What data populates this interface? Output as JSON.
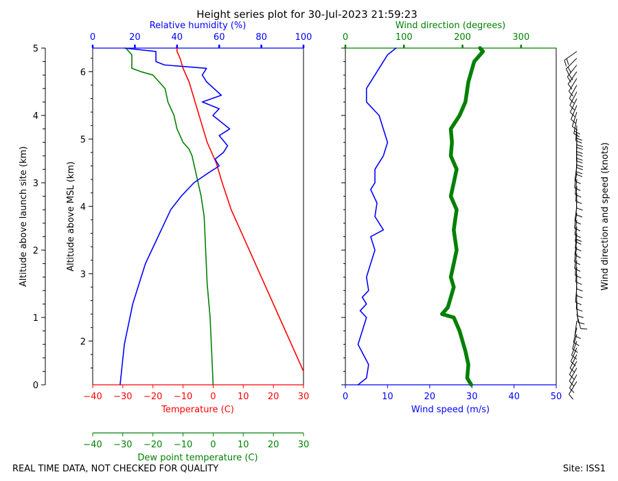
{
  "title": "Height series plot for 30-Jul-2023 21:59:23",
  "footer": {
    "quality_note": "REAL TIME DATA, NOT CHECKED FOR QUALITY",
    "site": "Site: ISS1"
  },
  "colors": {
    "temperature": "#ff0000",
    "dewpoint": "#008000",
    "humidity": "#0000ff",
    "wind_speed": "#0000ff",
    "wind_direction": "#008000",
    "barbs": "#000000"
  },
  "chart_data": [
    {
      "type": "line",
      "name": "thermo-panel",
      "yaxis_left": {
        "label": "Altitude above launch site (km)",
        "range": [
          0,
          5
        ],
        "ticks": [
          0,
          1,
          2,
          3,
          4,
          5
        ]
      },
      "yaxis_inner": {
        "label": "Altitude above MSL (km)",
        "ticks": [
          2,
          3,
          4,
          5,
          6
        ]
      },
      "xaxis_temperature": {
        "label": "Temperature (C)",
        "range": [
          -40,
          30
        ],
        "ticks": [
          -40,
          -30,
          -20,
          -10,
          0,
          10,
          20,
          30
        ]
      },
      "xaxis_dewpoint": {
        "label": "Dew point temperature (C)",
        "range": [
          -40,
          30
        ],
        "ticks": [
          -40,
          -30,
          -20,
          -10,
          0,
          10,
          20,
          30
        ]
      },
      "xaxis_humidity": {
        "label": "Relative humidity (%)",
        "range": [
          0,
          100
        ],
        "ticks": [
          0,
          20,
          40,
          60,
          80,
          100
        ]
      },
      "series": [
        {
          "name": "Temperature",
          "axis": "temperature",
          "points": [
            [
              30,
              0.2
            ],
            [
              26,
              0.6
            ],
            [
              22,
              1.0
            ],
            [
              18,
              1.4
            ],
            [
              14,
              1.8
            ],
            [
              10,
              2.2
            ],
            [
              6,
              2.6
            ],
            [
              3,
              3.0
            ],
            [
              1,
              3.3
            ],
            [
              -2,
              3.6
            ],
            [
              -4,
              3.9
            ],
            [
              -6,
              4.2
            ],
            [
              -8,
              4.5
            ],
            [
              -10,
              4.7
            ],
            [
              -11,
              4.85
            ],
            [
              -12,
              4.95
            ],
            [
              -12,
              5.0
            ]
          ]
        },
        {
          "name": "Dew point",
          "axis": "dewpoint",
          "points": [
            [
              0,
              0.0
            ],
            [
              -0.5,
              0.5
            ],
            [
              -1,
              1.0
            ],
            [
              -2,
              1.5
            ],
            [
              -2.5,
              2.0
            ],
            [
              -3,
              2.5
            ],
            [
              -4,
              2.8
            ],
            [
              -5,
              3.0
            ],
            [
              -6,
              3.2
            ],
            [
              -7,
              3.4
            ],
            [
              -8,
              3.5
            ],
            [
              -10,
              3.6
            ],
            [
              -12,
              3.8
            ],
            [
              -13,
              4.0
            ],
            [
              -15,
              4.2
            ],
            [
              -16,
              4.4
            ],
            [
              -18,
              4.5
            ],
            [
              -20,
              4.6
            ],
            [
              -24,
              4.65
            ],
            [
              -27,
              4.7
            ],
            [
              -27,
              4.9
            ],
            [
              -29,
              5.0
            ]
          ]
        },
        {
          "name": "Relative humidity",
          "axis": "humidity",
          "points": [
            [
              13,
              0.0
            ],
            [
              14,
              0.3
            ],
            [
              15,
              0.6
            ],
            [
              17,
              0.9
            ],
            [
              19,
              1.2
            ],
            [
              22,
              1.5
            ],
            [
              25,
              1.8
            ],
            [
              28,
              2.0
            ],
            [
              31,
              2.2
            ],
            [
              34,
              2.4
            ],
            [
              37,
              2.6
            ],
            [
              42,
              2.8
            ],
            [
              48,
              3.0
            ],
            [
              55,
              3.15
            ],
            [
              60,
              3.25
            ],
            [
              58,
              3.35
            ],
            [
              62,
              3.45
            ],
            [
              64,
              3.55
            ],
            [
              60,
              3.7
            ],
            [
              65,
              3.8
            ],
            [
              57,
              4.0
            ],
            [
              60,
              4.1
            ],
            [
              52,
              4.2
            ],
            [
              61,
              4.3
            ],
            [
              54,
              4.5
            ],
            [
              52,
              4.6
            ],
            [
              54,
              4.7
            ],
            [
              34,
              4.75
            ],
            [
              30,
              4.8
            ],
            [
              30,
              4.95
            ],
            [
              15,
              5.0
            ]
          ]
        }
      ]
    },
    {
      "type": "line",
      "name": "wind-panel",
      "xaxis_speed": {
        "label": "Wind speed (m/s)",
        "range": [
          0,
          50
        ],
        "ticks": [
          0,
          10,
          20,
          30,
          40,
          50
        ]
      },
      "xaxis_direction": {
        "label": "Wind direction (degrees)",
        "range": [
          0,
          360
        ],
        "ticks": [
          0,
          100,
          200,
          300
        ]
      },
      "yaxis_right": {
        "label": "Wind direction and speed (knots)"
      },
      "series": [
        {
          "name": "Wind speed",
          "axis": "speed",
          "points": [
            [
              3,
              0.0
            ],
            [
              5,
              0.1
            ],
            [
              5.5,
              0.3
            ],
            [
              3,
              0.6
            ],
            [
              4,
              0.8
            ],
            [
              5,
              1.0
            ],
            [
              3.5,
              1.1
            ],
            [
              5,
              1.2
            ],
            [
              4,
              1.3
            ],
            [
              5.5,
              1.4
            ],
            [
              5,
              1.6
            ],
            [
              6,
              1.8
            ],
            [
              7,
              2.0
            ],
            [
              6,
              2.2
            ],
            [
              9,
              2.3
            ],
            [
              7,
              2.5
            ],
            [
              7.5,
              2.7
            ],
            [
              6,
              2.9
            ],
            [
              7,
              3.0
            ],
            [
              7,
              3.2
            ],
            [
              9,
              3.4
            ],
            [
              10,
              3.6
            ],
            [
              8,
              4.0
            ],
            [
              5,
              4.2
            ],
            [
              5,
              4.4
            ],
            [
              7,
              4.6
            ],
            [
              9,
              4.8
            ],
            [
              10,
              4.9
            ],
            [
              12,
              5.0
            ]
          ]
        },
        {
          "name": "Wind direction",
          "axis": "direction",
          "points": [
            [
              215,
              0.0
            ],
            [
              208,
              0.1
            ],
            [
              210,
              0.3
            ],
            [
              205,
              0.5
            ],
            [
              195,
              0.8
            ],
            [
              185,
              1.0
            ],
            [
              165,
              1.05
            ],
            [
              175,
              1.15
            ],
            [
              180,
              1.3
            ],
            [
              185,
              1.45
            ],
            [
              180,
              1.6
            ],
            [
              185,
              1.8
            ],
            [
              190,
              2.0
            ],
            [
              185,
              2.3
            ],
            [
              190,
              2.6
            ],
            [
              180,
              2.8
            ],
            [
              185,
              3.0
            ],
            [
              190,
              3.2
            ],
            [
              180,
              3.4
            ],
            [
              182,
              3.6
            ],
            [
              180,
              3.8
            ],
            [
              195,
              4.0
            ],
            [
              205,
              4.2
            ],
            [
              210,
              4.5
            ],
            [
              220,
              4.8
            ],
            [
              235,
              4.95
            ],
            [
              230,
              5.0
            ]
          ]
        }
      ]
    }
  ]
}
